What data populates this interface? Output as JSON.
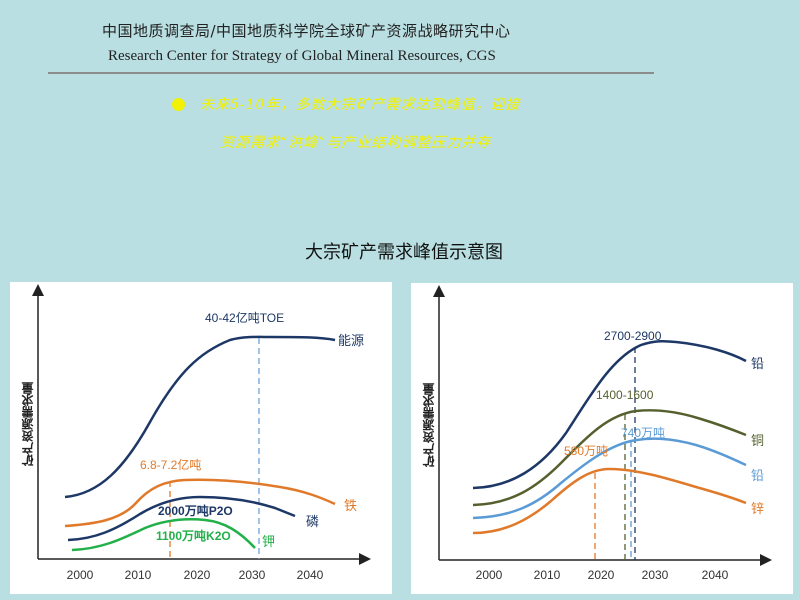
{
  "header": {
    "org_cn": "中国地质调查局/中国地质科学院全球矿产资源战略研究中心",
    "org_en": "Research Center for Strategy of Global Mineral Resources, CGS"
  },
  "headline": {
    "line1": "未来5-10年，多数大宗矿产需求达到峰值，迎接",
    "line2": "资源需求“洪峰”与产业结构调整压力并存"
  },
  "title": "大宗矿产需求峰值示意图",
  "colors": {
    "background": "#b9dfe2",
    "headline": "#f2f200"
  },
  "chart_data": [
    {
      "type": "line",
      "ylabel": "矿产资源需求量",
      "x_ticks": [
        "2000",
        "2010",
        "2020",
        "2030",
        "2040"
      ],
      "series": [
        {
          "name": "能源",
          "color": "#1d3866",
          "peak_label": "40-42亿吨TOE",
          "peak_year": 2031
        },
        {
          "name": "铁",
          "color": "#e07a2a",
          "peak_label": "6.8-7.2亿吨",
          "peak_year": 2015
        },
        {
          "name": "磷",
          "color": "#1d3866",
          "peak_label": "2000万吨P2O"
        },
        {
          "name": "钾",
          "color": "#22b04a",
          "peak_label": "1100万吨K2O"
        }
      ]
    },
    {
      "type": "line",
      "ylabel": "矿产资源需求量",
      "x_ticks": [
        "2000",
        "2010",
        "2020",
        "2030",
        "2040"
      ],
      "series": [
        {
          "name": "铅",
          "color": "#1d3866",
          "peak_label": "2700-2900",
          "peak_year": 2025
        },
        {
          "name": "铜",
          "color": "#55602e",
          "peak_label": "1400-1600",
          "peak_year": 2023
        },
        {
          "name": "铅",
          "color": "#5b9bd5",
          "peak_label": "740万吨",
          "peak_year": 2025
        },
        {
          "name": "锌",
          "color": "#e07a2a",
          "peak_label": "580万吨",
          "peak_year": 2018
        }
      ]
    }
  ]
}
